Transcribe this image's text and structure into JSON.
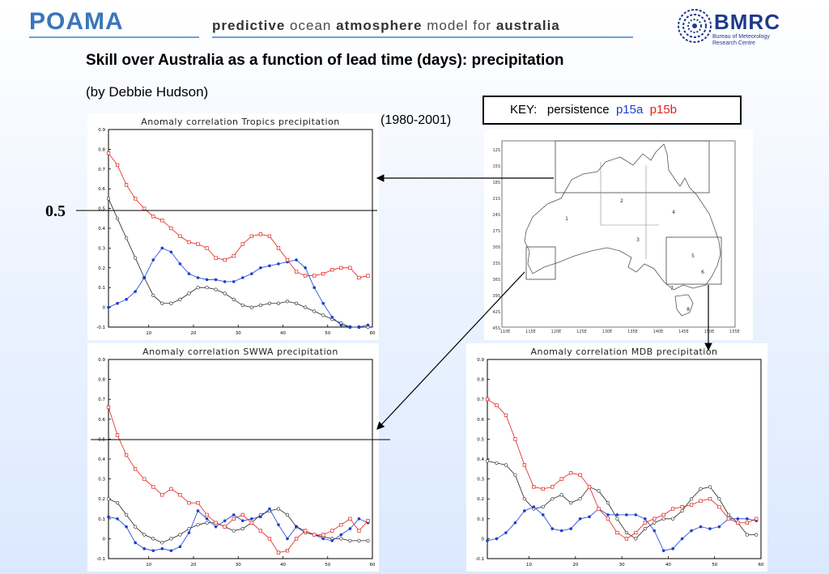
{
  "header": {
    "logo": "POAMA",
    "tagline_1": "predictive",
    "tagline_2": "ocean",
    "tagline_3": "atmosphere",
    "tagline_4": "model for",
    "tagline_5": "australia",
    "bmrc": "BMRC",
    "bmrc_sub": "Bureau of Meteorology Research Centre"
  },
  "title": "Skill over Australia as a function of lead time (days): precipitation",
  "subtitle": "(by Debbie Hudson)",
  "period": "(1980-2001)",
  "key": {
    "label": "KEY:",
    "persistence": "persistence",
    "p15a": "p15a",
    "p15b": "p15b"
  },
  "reference_label": "0.5",
  "colors": {
    "persistence": "#222222",
    "p15a": "#1a3fd0",
    "p15b": "#e0201a"
  },
  "chart_data": [
    {
      "type": "line",
      "title": "Anomaly correlation Tropics precipitation",
      "xlim": [
        1,
        60
      ],
      "ylim": [
        -0.1,
        0.9
      ],
      "xticks": [
        10,
        20,
        30,
        40,
        50,
        60
      ],
      "yticks": [
        -0.1,
        0,
        0.1,
        0.2,
        0.3,
        0.4,
        0.5,
        0.6,
        0.7,
        0.8,
        0.9
      ],
      "ytick_labels": [
        "-0.1",
        "0",
        "0.1",
        "0.2",
        "0.3",
        "0.4",
        "0.5",
        "0.6",
        "0.7",
        "0.8",
        "0.9"
      ],
      "reference_line": 0.5,
      "series": [
        {
          "name": "persistence",
          "x": [
            1,
            3,
            5,
            7,
            9,
            11,
            13,
            15,
            17,
            19,
            21,
            23,
            25,
            27,
            29,
            31,
            33,
            35,
            37,
            39,
            41,
            43,
            45,
            47,
            49,
            51,
            53,
            55,
            57,
            59
          ],
          "values": [
            0.55,
            0.45,
            0.35,
            0.25,
            0.15,
            0.06,
            0.02,
            0.02,
            0.04,
            0.07,
            0.1,
            0.1,
            0.09,
            0.07,
            0.04,
            0.01,
            0.0,
            0.01,
            0.02,
            0.02,
            0.03,
            0.02,
            0.0,
            -0.02,
            -0.04,
            -0.06,
            -0.08,
            -0.1,
            -0.1,
            -0.1
          ]
        },
        {
          "name": "p15a",
          "x": [
            1,
            3,
            5,
            7,
            9,
            11,
            13,
            15,
            17,
            19,
            21,
            23,
            25,
            27,
            29,
            31,
            33,
            35,
            37,
            39,
            41,
            43,
            45,
            47,
            49,
            51,
            53,
            55,
            57,
            59
          ],
          "values": [
            0.0,
            0.02,
            0.04,
            0.08,
            0.15,
            0.24,
            0.3,
            0.28,
            0.22,
            0.17,
            0.15,
            0.14,
            0.14,
            0.13,
            0.13,
            0.15,
            0.17,
            0.2,
            0.21,
            0.22,
            0.23,
            0.24,
            0.2,
            0.1,
            0.02,
            -0.05,
            -0.09,
            -0.1,
            -0.1,
            -0.09
          ]
        },
        {
          "name": "p15b",
          "x": [
            1,
            3,
            5,
            7,
            9,
            11,
            13,
            15,
            17,
            19,
            21,
            23,
            25,
            27,
            29,
            31,
            33,
            35,
            37,
            39,
            41,
            43,
            45,
            47,
            49,
            51,
            53,
            55,
            57,
            59
          ],
          "values": [
            0.78,
            0.72,
            0.62,
            0.55,
            0.5,
            0.46,
            0.44,
            0.4,
            0.36,
            0.33,
            0.32,
            0.3,
            0.25,
            0.24,
            0.26,
            0.32,
            0.36,
            0.37,
            0.36,
            0.3,
            0.24,
            0.18,
            0.16,
            0.16,
            0.17,
            0.19,
            0.2,
            0.2,
            0.15,
            0.16
          ]
        }
      ]
    },
    {
      "type": "line",
      "title": "Anomaly correlation SWWA precipitation",
      "xlim": [
        1,
        60
      ],
      "ylim": [
        -0.1,
        0.9
      ],
      "xticks": [
        10,
        20,
        30,
        40,
        50,
        60
      ],
      "yticks": [
        -0.1,
        0,
        0.1,
        0.2,
        0.3,
        0.4,
        0.5,
        0.6,
        0.7,
        0.8,
        0.9
      ],
      "ytick_labels": [
        "-0.1",
        "0",
        "0.1",
        "0.2",
        "0.3",
        "0.4",
        "0.5",
        "0.6",
        "0.7",
        "0.8",
        "0.9"
      ],
      "reference_line": 0.5,
      "series": [
        {
          "name": "persistence",
          "x": [
            1,
            3,
            5,
            7,
            9,
            11,
            13,
            15,
            17,
            19,
            21,
            23,
            25,
            27,
            29,
            31,
            33,
            35,
            37,
            39,
            41,
            43,
            45,
            47,
            49,
            51,
            53,
            55,
            57,
            59
          ],
          "values": [
            0.2,
            0.18,
            0.12,
            0.06,
            0.02,
            0.0,
            -0.02,
            0.0,
            0.02,
            0.05,
            0.07,
            0.08,
            0.08,
            0.06,
            0.04,
            0.05,
            0.08,
            0.12,
            0.14,
            0.15,
            0.12,
            0.06,
            0.03,
            0.02,
            0.01,
            0.0,
            0.0,
            -0.01,
            -0.01,
            -0.01
          ]
        },
        {
          "name": "p15a",
          "x": [
            1,
            3,
            5,
            7,
            9,
            11,
            13,
            15,
            17,
            19,
            21,
            23,
            25,
            27,
            29,
            31,
            33,
            35,
            37,
            39,
            41,
            43,
            45,
            47,
            49,
            51,
            53,
            55,
            57,
            59
          ],
          "values": [
            0.11,
            0.1,
            0.06,
            -0.02,
            -0.05,
            -0.06,
            -0.05,
            -0.06,
            -0.04,
            0.03,
            0.14,
            0.1,
            0.06,
            0.09,
            0.12,
            0.09,
            0.1,
            0.11,
            0.15,
            0.07,
            0.0,
            0.06,
            0.04,
            0.02,
            0.0,
            -0.01,
            0.02,
            0.05,
            0.1,
            0.08
          ]
        },
        {
          "name": "p15b",
          "x": [
            1,
            3,
            5,
            7,
            9,
            11,
            13,
            15,
            17,
            19,
            21,
            23,
            25,
            27,
            29,
            31,
            33,
            35,
            37,
            39,
            41,
            43,
            45,
            47,
            49,
            51,
            53,
            55,
            57,
            59
          ],
          "values": [
            0.66,
            0.52,
            0.42,
            0.35,
            0.3,
            0.26,
            0.22,
            0.25,
            0.22,
            0.18,
            0.18,
            0.12,
            0.08,
            0.06,
            0.1,
            0.12,
            0.08,
            0.04,
            0.0,
            -0.07,
            -0.06,
            0.0,
            0.04,
            0.02,
            0.02,
            0.04,
            0.07,
            0.1,
            0.04,
            0.09
          ]
        }
      ]
    },
    {
      "type": "line",
      "title": "Anomaly correlation MDB precipitation",
      "xlim": [
        1,
        60
      ],
      "ylim": [
        -0.1,
        0.9
      ],
      "xticks": [
        10,
        20,
        30,
        40,
        50,
        60
      ],
      "yticks": [
        -0.1,
        0,
        0.1,
        0.2,
        0.3,
        0.4,
        0.5,
        0.6,
        0.7,
        0.8,
        0.9
      ],
      "ytick_labels": [
        "-0.1",
        "0",
        "0.1",
        "0.2",
        "0.3",
        "0.4",
        "0.5",
        "0.6",
        "0.7",
        "0.8",
        "0.9"
      ],
      "series": [
        {
          "name": "persistence",
          "x": [
            1,
            3,
            5,
            7,
            9,
            11,
            13,
            15,
            17,
            19,
            21,
            23,
            25,
            27,
            29,
            31,
            33,
            35,
            37,
            39,
            41,
            43,
            45,
            47,
            49,
            51,
            53,
            55,
            57,
            59
          ],
          "values": [
            0.39,
            0.38,
            0.37,
            0.32,
            0.2,
            0.15,
            0.16,
            0.2,
            0.22,
            0.18,
            0.2,
            0.26,
            0.24,
            0.18,
            0.1,
            0.03,
            0.0,
            0.05,
            0.08,
            0.1,
            0.1,
            0.14,
            0.2,
            0.25,
            0.26,
            0.2,
            0.12,
            0.08,
            0.02,
            0.02
          ]
        },
        {
          "name": "p15a",
          "x": [
            1,
            3,
            5,
            7,
            9,
            11,
            13,
            15,
            17,
            19,
            21,
            23,
            25,
            27,
            29,
            31,
            33,
            35,
            37,
            39,
            41,
            43,
            45,
            47,
            49,
            51,
            53,
            55,
            57,
            59
          ],
          "values": [
            -0.01,
            0.0,
            0.03,
            0.08,
            0.14,
            0.16,
            0.12,
            0.05,
            0.04,
            0.05,
            0.1,
            0.11,
            0.15,
            0.12,
            0.12,
            0.12,
            0.12,
            0.1,
            0.04,
            -0.06,
            -0.05,
            0.0,
            0.04,
            0.06,
            0.05,
            0.06,
            0.1,
            0.1,
            0.1,
            0.09
          ]
        },
        {
          "name": "p15b",
          "x": [
            1,
            3,
            5,
            7,
            9,
            11,
            13,
            15,
            17,
            19,
            21,
            23,
            25,
            27,
            29,
            31,
            33,
            35,
            37,
            39,
            41,
            43,
            45,
            47,
            49,
            51,
            53,
            55,
            57,
            59
          ],
          "values": [
            0.7,
            0.67,
            0.62,
            0.5,
            0.37,
            0.26,
            0.25,
            0.26,
            0.3,
            0.33,
            0.32,
            0.26,
            0.15,
            0.1,
            0.03,
            0.0,
            0.03,
            0.08,
            0.1,
            0.12,
            0.15,
            0.16,
            0.17,
            0.19,
            0.2,
            0.16,
            0.1,
            0.08,
            0.08,
            0.1
          ]
        }
      ]
    }
  ],
  "map": {
    "lat_labels": [
      "12S",
      "15S",
      "18S",
      "21S",
      "24S",
      "27S",
      "30S",
      "33S",
      "36S",
      "39S",
      "42S",
      "45S"
    ],
    "lon_labels": [
      "110E",
      "115E",
      "120E",
      "125E",
      "130E",
      "135E",
      "140E",
      "145E",
      "150E",
      "155E"
    ],
    "region_numbers": [
      "1",
      "2",
      "3",
      "4",
      "5",
      "6",
      "7",
      "8"
    ]
  }
}
